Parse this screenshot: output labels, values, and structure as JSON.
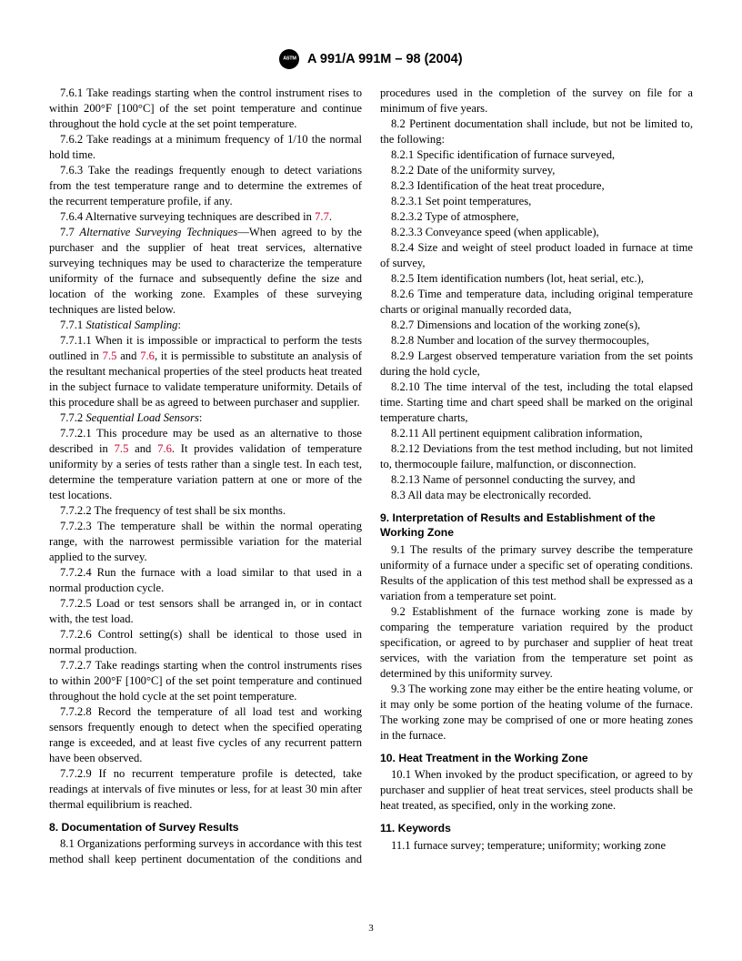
{
  "header": "A 991/A 991M – 98 (2004)",
  "pageNumber": "3",
  "refColor": "#cc0033",
  "paras": {
    "p761": "7.6.1 Take readings starting when the control instrument rises to within 200°F [100°C] of the set point temperature and continue throughout the hold cycle at the set point temperature.",
    "p762": "7.6.2 Take readings at a minimum frequency of 1/10 the normal hold time.",
    "p763": "7.6.3 Take the readings frequently enough to detect variations from the test temperature range and to determine the extremes of the recurrent temperature profile, if any.",
    "p764a": "7.6.4 Alternative surveying techniques are described in ",
    "p764b": "7.7",
    "p764c": ".",
    "p77a": "7.7 ",
    "p77i": "Alternative Surveying Techniques",
    "p77b": "—When agreed to by the purchaser and the supplier of heat treat services, alternative surveying techniques may be used to characterize the temperature uniformity of the furnace and subsequently define the size and location of the working zone. Examples of these surveying techniques are listed below.",
    "p771a": "7.7.1 ",
    "p771i": "Statistical Sampling",
    "p771b": ":",
    "p7711a": "7.7.1.1 When it is impossible or impractical to perform the tests outlined in ",
    "p7711r1": "7.5",
    "p7711m": " and ",
    "p7711r2": "7.6",
    "p7711b": ", it is permissible to substitute an analysis of the resultant mechanical properties of the steel products heat treated in the subject furnace to validate temperature uniformity. Details of this procedure shall be as agreed to between purchaser and supplier.",
    "p772a": "7.7.2 ",
    "p772i": "Sequential Load Sensors",
    "p772b": ":",
    "p7721a": "7.7.2.1 This procedure may be used as an alternative to those described in ",
    "p7721r1": "7.5",
    "p7721m": " and ",
    "p7721r2": "7.6",
    "p7721b": ". It provides validation of temperature uniformity by a series of tests rather than a single test. In each test, determine the temperature variation pattern at one or more of the test locations.",
    "p7722": "7.7.2.2 The frequency of test shall be six months.",
    "p7723": "7.7.2.3 The temperature shall be within the normal operating range, with the narrowest permissible variation for the material applied to the survey.",
    "p7724": "7.7.2.4 Run the furnace with a load similar to that used in a normal production cycle.",
    "p7725": "7.7.2.5 Load or test sensors shall be arranged in, or in contact with, the test load.",
    "p7726": "7.7.2.6 Control setting(s) shall be identical to those used in normal production.",
    "p7727": "7.7.2.7 Take readings starting when the control instruments rises to within 200°F [100°C] of the set point temperature and continued throughout the hold cycle at the set point temperature.",
    "p7728": "7.7.2.8 Record the temperature of all load test and working sensors frequently enough to detect when the specified operating range is exceeded, and at least five cycles of any recurrent pattern have been observed.",
    "p7729": "7.7.2.9 If no recurrent temperature profile is detected, take readings at intervals of five minutes or less, for at least 30 min after thermal equilibrium is reached.",
    "h8": "8. Documentation of Survey Results",
    "p81": "8.1 Organizations performing surveys in accordance with this test method shall keep pertinent documentation of the conditions and procedures used in the completion of the survey on file for a minimum of five years.",
    "p82": "8.2 Pertinent documentation shall include, but not be limited to, the following:",
    "p821": "8.2.1 Specific identification of furnace surveyed,",
    "p822": "8.2.2 Date of the uniformity survey,",
    "p823": "8.2.3 Identification of the heat treat procedure,",
    "p8231": "8.2.3.1 Set point temperatures,",
    "p8232": "8.2.3.2 Type of atmosphere,",
    "p8233": "8.2.3.3 Conveyance speed (when applicable),",
    "p824": "8.2.4 Size and weight of steel product loaded in furnace at time of survey,",
    "p825": "8.2.5 Item identification numbers (lot, heat serial, etc.),",
    "p826": "8.2.6 Time and temperature data, including original temperature charts or original manually recorded data,",
    "p827": "8.2.7 Dimensions and location of the working zone(s),",
    "p828": "8.2.8 Number and location of the survey thermocouples,",
    "p829": "8.2.9 Largest observed temperature variation from the set points during the hold cycle,",
    "p8210": "8.2.10 The time interval of the test, including the total elapsed time. Starting time and chart speed shall be marked on the original temperature charts,",
    "p8211": "8.2.11 All pertinent equipment calibration information,",
    "p8212": "8.2.12 Deviations from the test method including, but not limited to, thermocouple failure, malfunction, or disconnection.",
    "p8213": "8.2.13 Name of personnel conducting the survey, and",
    "p83": "8.3 All data may be electronically recorded.",
    "h9": "9. Interpretation of Results and Establishment of the Working Zone",
    "p91": "9.1 The results of the primary survey describe the temperature uniformity of a furnace under a specific set of operating conditions. Results of the application of this test method shall be expressed as a variation from a temperature set point.",
    "p92": "9.2 Establishment of the furnace working zone is made by comparing the temperature variation required by the product specification, or agreed to by purchaser and supplier of heat treat services, with the variation from the temperature set point as determined by this uniformity survey.",
    "p93": "9.3 The working zone may either be the entire heating volume, or it may only be some portion of the heating volume of the furnace. The working zone may be comprised of one or more heating zones in the furnace.",
    "h10": "10. Heat Treatment in the Working Zone",
    "p101": "10.1 When invoked by the product specification, or agreed to by purchaser and supplier of heat treat services, steel products shall be heat treated, as specified, only in the working zone.",
    "h11": "11. Keywords",
    "p111": "11.1 furnace survey; temperature; uniformity; working zone"
  }
}
